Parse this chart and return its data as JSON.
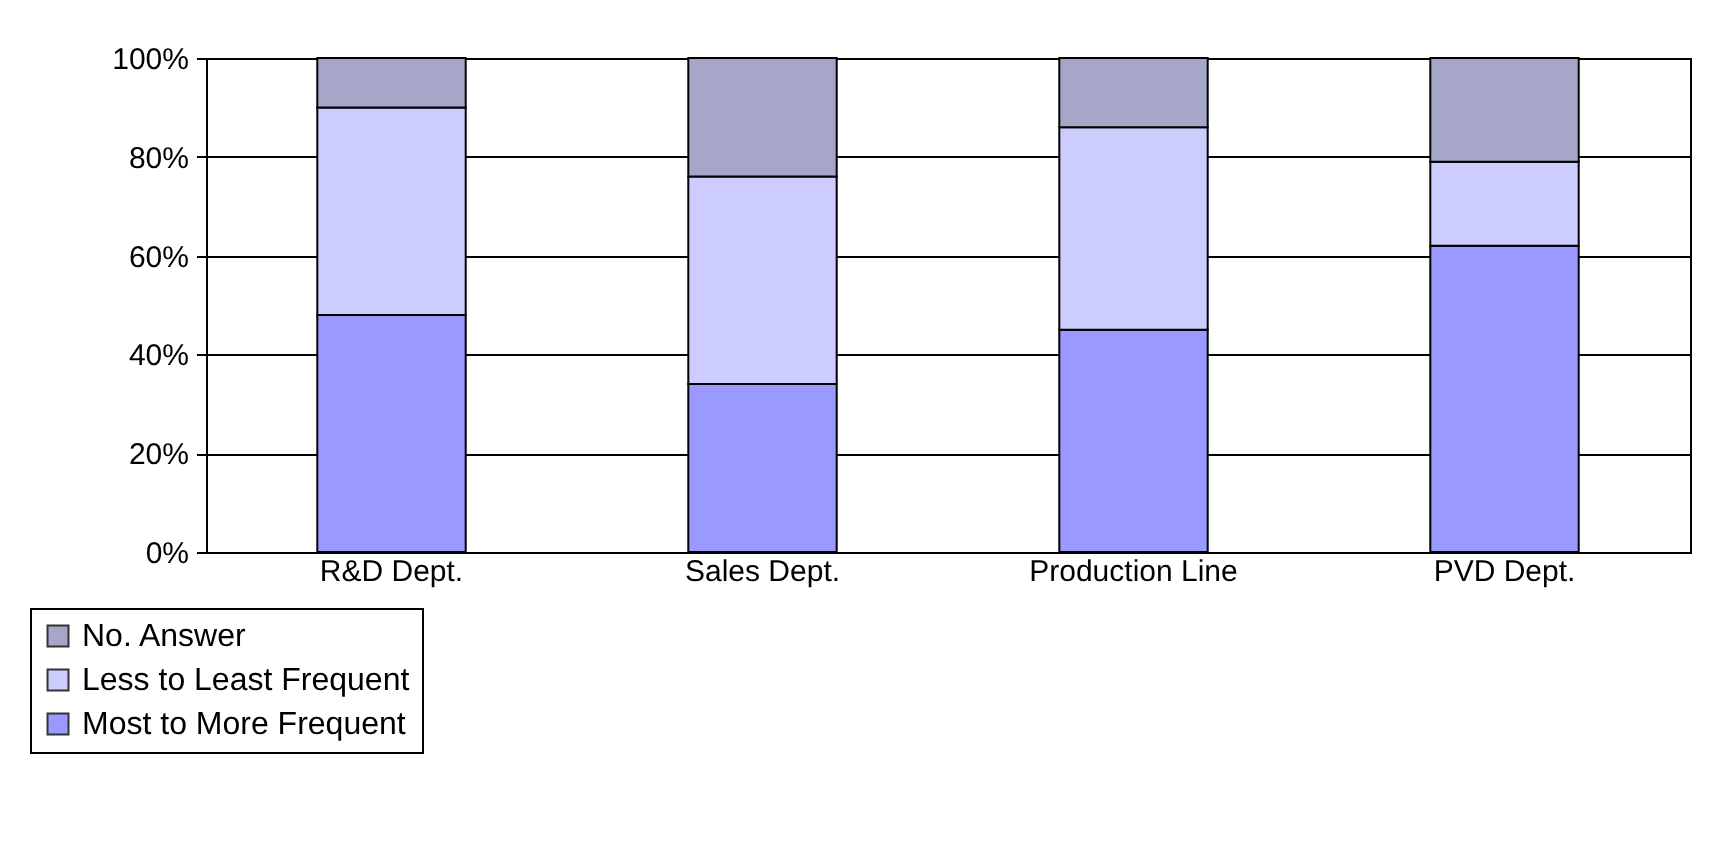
{
  "chart_data": {
    "type": "bar",
    "stacked": true,
    "categories": [
      "R&D Dept.",
      "Sales Dept.",
      "Production Line",
      "PVD Dept."
    ],
    "series": [
      {
        "name": "Most to More Frequent",
        "color": "#9999ff",
        "values": [
          48,
          34,
          45,
          62
        ]
      },
      {
        "name": "Less to Least Frequent",
        "color": "#ccccff",
        "values": [
          42,
          42,
          41,
          17
        ]
      },
      {
        "name": "No. Answer",
        "color": "#a6a6c8",
        "values": [
          10,
          24,
          14,
          21
        ]
      }
    ],
    "ylim": [
      0,
      100
    ],
    "yticks": [
      {
        "value": 0,
        "label": "0%"
      },
      {
        "value": 20,
        "label": "20%"
      },
      {
        "value": 40,
        "label": "40%"
      },
      {
        "value": 60,
        "label": "60%"
      },
      {
        "value": 80,
        "label": "80%"
      },
      {
        "value": 100,
        "label": "100%"
      }
    ],
    "grid": "y",
    "legend": "bottom left"
  }
}
